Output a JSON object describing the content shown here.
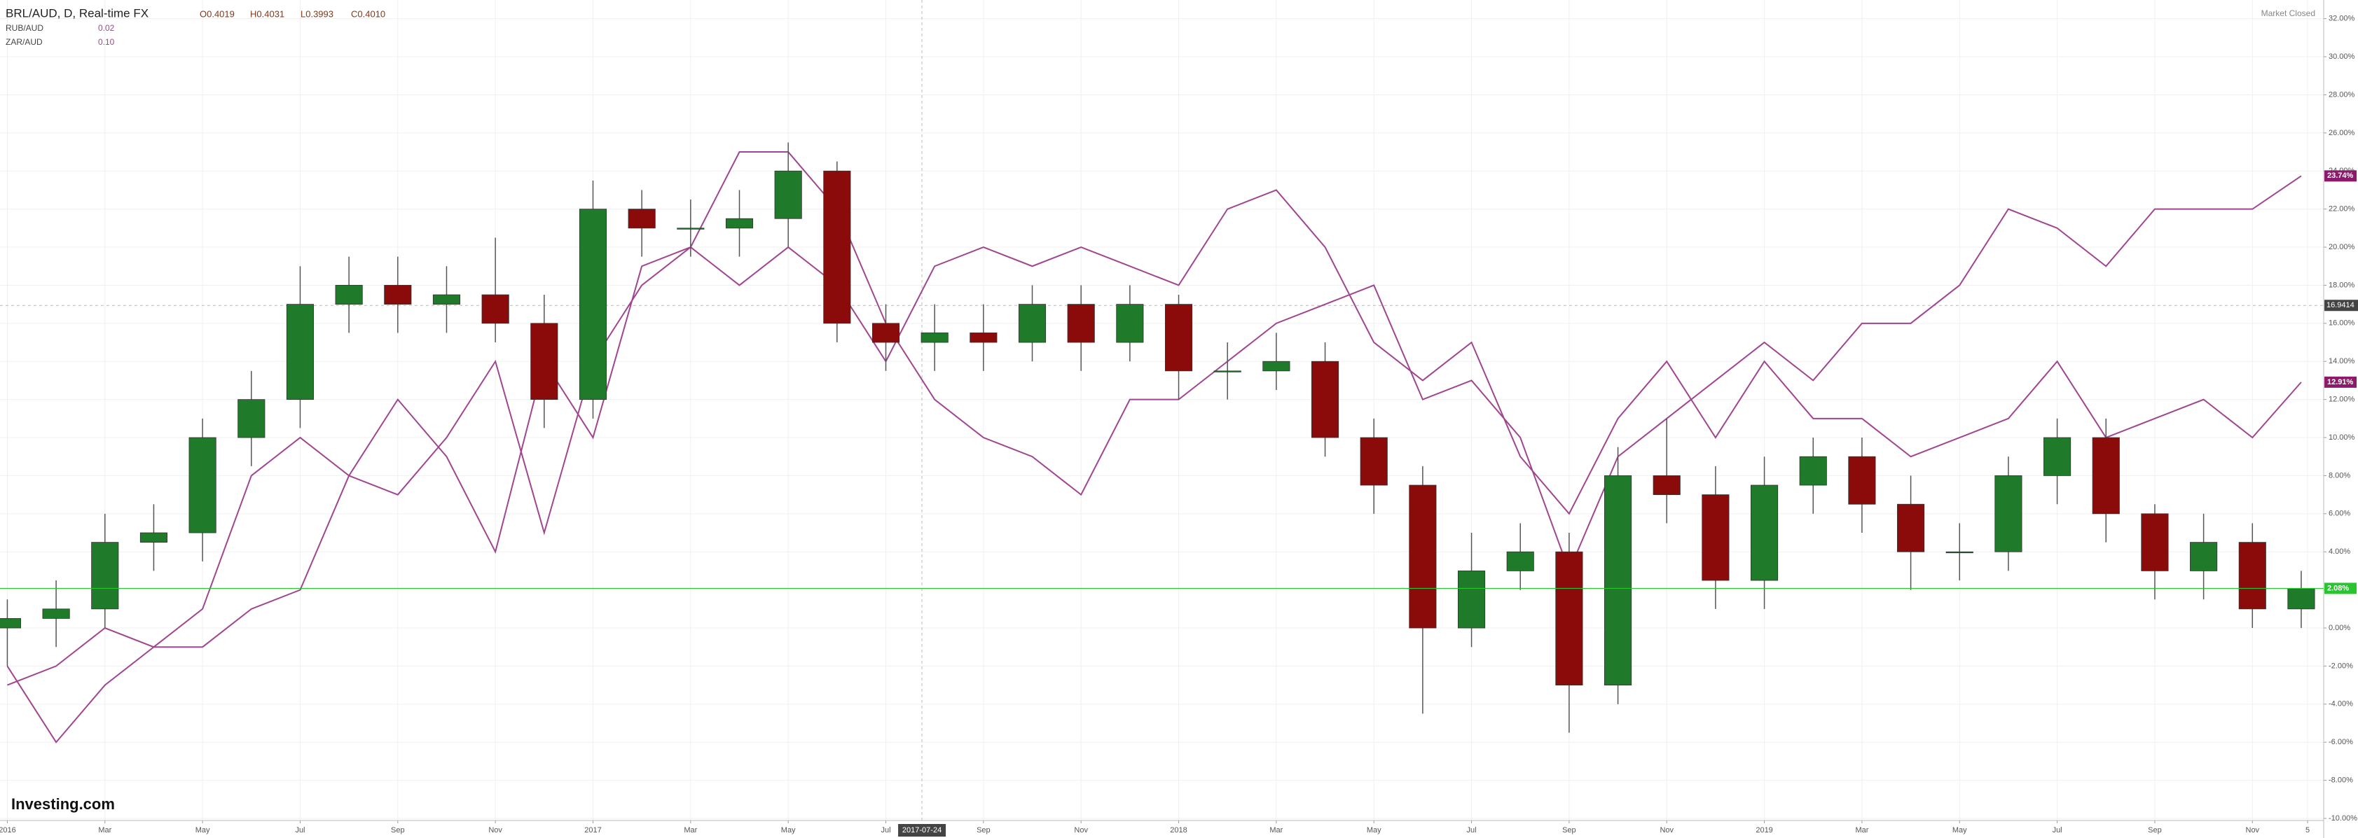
{
  "chart_data": {
    "type": "candlestick",
    "title": "BRL/AUD, D, Real-time FX",
    "ohlc_labels": [
      "O0.4019",
      "H0.4031",
      "L0.3993",
      "C0.4010"
    ],
    "status": "Market Closed",
    "brand": "Investing.com",
    "x": [
      0,
      1,
      2,
      3,
      4,
      5,
      6,
      7,
      8,
      9,
      10,
      11,
      12,
      13,
      14,
      15,
      16,
      17,
      18,
      19,
      20,
      21,
      22,
      23,
      24,
      25,
      26,
      27,
      28,
      29,
      30,
      31,
      32,
      33,
      34,
      35,
      36,
      37,
      38,
      39,
      40,
      41,
      42,
      43,
      44,
      45,
      46,
      47
    ],
    "open": [
      0,
      0.5,
      1,
      4.5,
      5,
      10,
      12,
      17,
      18,
      17,
      17.5,
      16,
      12,
      22,
      21,
      21,
      21.5,
      24,
      16,
      15,
      15.5,
      15,
      17,
      15,
      17,
      13.5,
      13.5,
      14,
      10,
      7.5,
      0,
      3,
      4,
      -3,
      8,
      7,
      2.5,
      7.5,
      9,
      6.5,
      4,
      4,
      8,
      10,
      6,
      3,
      4.5,
      1
    ],
    "high": [
      1.5,
      2.5,
      6,
      6.5,
      11,
      13.5,
      19,
      19.5,
      19.5,
      19,
      20.5,
      17.5,
      23.5,
      23,
      22.5,
      23,
      25.5,
      24.5,
      17,
      17,
      17,
      18,
      18,
      18,
      17.5,
      15,
      15.5,
      15,
      11,
      8.5,
      5,
      5.5,
      5,
      9.5,
      11,
      8.5,
      9,
      10,
      10,
      8,
      5.5,
      9,
      11,
      11,
      6.5,
      6,
      5.5,
      3
    ],
    "low": [
      -2,
      -1,
      0,
      3,
      3.5,
      8.5,
      10.5,
      15.5,
      15.5,
      15.5,
      15,
      10.5,
      11,
      19.5,
      19.5,
      19.5,
      20,
      15,
      13.5,
      13.5,
      13.5,
      14,
      13.5,
      14,
      12,
      12,
      12.5,
      9,
      6,
      -4.5,
      -1,
      2,
      -5.5,
      -4,
      5.5,
      1,
      1,
      6,
      5,
      2,
      2.5,
      3,
      6.5,
      4.5,
      1.5,
      1.5,
      0,
      0
    ],
    "close": [
      0.5,
      1,
      4.5,
      5,
      10,
      12,
      17,
      18,
      17,
      17.5,
      16,
      12,
      22,
      21,
      21,
      21.5,
      24,
      16,
      15,
      15.5,
      15,
      17,
      15,
      17,
      13.5,
      13.5,
      14,
      10,
      7.5,
      0,
      3,
      4,
      -3,
      8,
      7,
      2.5,
      7.5,
      9,
      6.5,
      4,
      4,
      8,
      10,
      6,
      3,
      4.5,
      1,
      2.08
    ],
    "last_label": "2.08%",
    "up_color": "#1f7a2a",
    "down_color": "#8b0a0a",
    "last_color": "#29c52f",
    "series": [
      {
        "name": "RUB/AUD",
        "legend_value": "0.02",
        "color": "#a0458f",
        "last_label": "23.74%",
        "values": [
          -2,
          -6,
          -3,
          -1,
          -1,
          1,
          2,
          8,
          7,
          10,
          14,
          5,
          14,
          18,
          20,
          25,
          25,
          22,
          16,
          12,
          10,
          9,
          7,
          12,
          12,
          14,
          16,
          17,
          18,
          12,
          13,
          10,
          3,
          9,
          11,
          13,
          15,
          13,
          16,
          16,
          18,
          22,
          21,
          19,
          22,
          22,
          22,
          23.74
        ]
      },
      {
        "name": "ZAR/AUD",
        "legend_value": "0.10",
        "color": "#a0458f",
        "last_label": "12.91%",
        "values": [
          -3,
          -2,
          0,
          -1,
          1,
          8,
          10,
          8,
          12,
          9,
          4,
          14,
          10,
          19,
          20,
          18,
          20,
          18,
          14,
          19,
          20,
          19,
          20,
          19,
          18,
          22,
          23,
          20,
          15,
          13,
          15,
          9,
          6,
          11,
          14,
          10,
          14,
          11,
          11,
          9,
          10,
          11,
          14,
          10,
          11,
          12,
          10,
          12.91
        ]
      }
    ],
    "crosshair": {
      "x": 18.74,
      "x_label": "2017-07-24",
      "y": 16.9414
    },
    "xlim": [
      -0.15,
      47.46
    ],
    "xticks": [
      {
        "value": 0,
        "label": "2016"
      },
      {
        "value": 2,
        "label": "Mar"
      },
      {
        "value": 4,
        "label": "May"
      },
      {
        "value": 6,
        "label": "Jul"
      },
      {
        "value": 8,
        "label": "Sep"
      },
      {
        "value": 10,
        "label": "Nov"
      },
      {
        "value": 12,
        "label": "2017"
      },
      {
        "value": 14,
        "label": "Mar"
      },
      {
        "value": 16,
        "label": "May"
      },
      {
        "value": 18,
        "label": "Jul"
      },
      {
        "value": 20,
        "label": "Sep"
      },
      {
        "value": 22,
        "label": "Nov"
      },
      {
        "value": 24,
        "label": "2018"
      },
      {
        "value": 26,
        "label": "Mar"
      },
      {
        "value": 28,
        "label": "May"
      },
      {
        "value": 30,
        "label": "Jul"
      },
      {
        "value": 32,
        "label": "Sep"
      },
      {
        "value": 34,
        "label": "Nov"
      },
      {
        "value": 36,
        "label": "2019"
      },
      {
        "value": 38,
        "label": "Mar"
      },
      {
        "value": 40,
        "label": "May"
      },
      {
        "value": 42,
        "label": "Jul"
      },
      {
        "value": 44,
        "label": "Sep"
      },
      {
        "value": 46,
        "label": "Nov"
      },
      {
        "value": 47.13,
        "label": "5"
      }
    ],
    "ylim": [
      -10.11,
      32.98
    ],
    "yticks": [
      {
        "value": 32,
        "label": "32.00%"
      },
      {
        "value": 30,
        "label": "30.00%"
      },
      {
        "value": 28,
        "label": "28.00%"
      },
      {
        "value": 26,
        "label": "26.00%"
      },
      {
        "value": 24,
        "label": "24.00%"
      },
      {
        "value": 22,
        "label": "22.00%"
      },
      {
        "value": 20,
        "label": "20.00%"
      },
      {
        "value": 18,
        "label": "18.00%"
      },
      {
        "value": 16,
        "label": "16.00%"
      },
      {
        "value": 14,
        "label": "14.00%"
      },
      {
        "value": 12,
        "label": "12.00%"
      },
      {
        "value": 10,
        "label": "10.00%"
      },
      {
        "value": 8,
        "label": "8.00%"
      },
      {
        "value": 6,
        "label": "6.00%"
      },
      {
        "value": 4,
        "label": "4.00%"
      },
      {
        "value": 2,
        "label": "2.00%"
      },
      {
        "value": 0,
        "label": "0.00%"
      },
      {
        "value": -2,
        "label": "-2.00%"
      },
      {
        "value": -4,
        "label": "-4.00%"
      },
      {
        "value": -6,
        "label": "-6.00%"
      },
      {
        "value": -8,
        "label": "-8.00%"
      },
      {
        "value": -10,
        "label": "-10.00%"
      }
    ],
    "grid": true
  }
}
